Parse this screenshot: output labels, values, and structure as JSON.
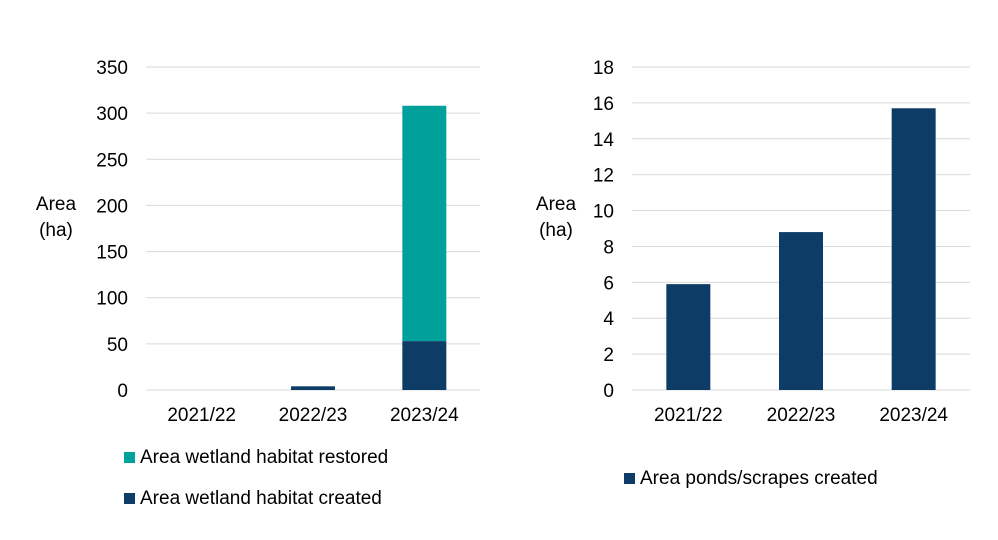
{
  "chart_data": [
    {
      "type": "bar",
      "stacked": true,
      "categories": [
        "2021/22",
        "2022/23",
        "2023/24"
      ],
      "series": [
        {
          "name": "Area wetland habitat created",
          "color": "#0d3d66",
          "values": [
            0,
            4,
            53
          ]
        },
        {
          "name": "Area wetland habitat restored",
          "color": "#00a19a",
          "values": [
            0,
            0,
            255
          ]
        }
      ],
      "ylabel": [
        "Area",
        "(ha)"
      ],
      "ylim": [
        0,
        350
      ],
      "yticks": [
        0,
        50,
        100,
        150,
        200,
        250,
        300,
        350
      ],
      "grid": true,
      "legend_position": "bottom",
      "legend_order": [
        "Area wetland habitat restored",
        "Area wetland habitat created"
      ]
    },
    {
      "type": "bar",
      "categories": [
        "2021/22",
        "2022/23",
        "2023/24"
      ],
      "series": [
        {
          "name": "Area ponds/scrapes created",
          "color": "#0d3d66",
          "values": [
            5.9,
            8.8,
            15.7
          ]
        }
      ],
      "ylabel": [
        "Area",
        "(ha)"
      ],
      "ylim": [
        0,
        18
      ],
      "yticks": [
        0,
        2,
        4,
        6,
        8,
        10,
        12,
        14,
        16,
        18
      ],
      "grid": true,
      "legend_position": "bottom",
      "legend_order": [
        "Area ponds/scrapes created"
      ]
    }
  ]
}
